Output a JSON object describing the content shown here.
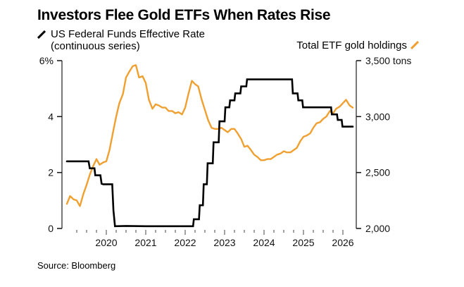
{
  "title": "Investors Flee Gold ETFs When Rates Rise",
  "source": "Source: Bloomberg",
  "legend": {
    "rate_label": "US Federal Funds Effective Rate (continuous series)",
    "gold_label": "Total ETF gold holdings"
  },
  "colors": {
    "rate": "#000000",
    "gold": "#f0a030",
    "axis": "#777777"
  },
  "chart_data": {
    "type": "line",
    "title": "Investors Flee Gold ETFs When Rates Rise",
    "xlabel": "",
    "x_ticks": [
      "2020",
      "2021",
      "2022",
      "2023",
      "2024",
      "2025",
      "2026"
    ],
    "xlim": [
      2019.0,
      2026.5
    ],
    "y_left": {
      "label": "US Federal Funds Effective Rate",
      "unit": "%",
      "ticks": [
        "6%",
        "4",
        "2",
        "0"
      ],
      "ylim": [
        0,
        6
      ]
    },
    "y_right": {
      "label": "Total ETF gold holdings",
      "unit": "tons",
      "ticks": [
        "3,500 tons",
        "3,000",
        "2,500",
        "2,000"
      ],
      "ylim": [
        2000,
        3500
      ]
    },
    "grid": false,
    "legend": [
      "top-left",
      "top-right"
    ],
    "series": [
      {
        "name": "US Federal Funds Effective Rate (continuous series)",
        "axis": "left",
        "style": "step",
        "x": [
          2019.0,
          2019.55,
          2019.58,
          2019.7,
          2019.72,
          2019.85,
          2019.88,
          2019.92,
          2020.15,
          2020.18,
          2020.22,
          2020.5,
          2021.0,
          2021.5,
          2022.0,
          2022.2,
          2022.22,
          2022.35,
          2022.37,
          2022.45,
          2022.47,
          2022.55,
          2022.57,
          2022.7,
          2022.72,
          2022.85,
          2022.87,
          2023.0,
          2023.02,
          2023.12,
          2023.14,
          2023.25,
          2023.27,
          2023.4,
          2023.42,
          2023.55,
          2023.57,
          2024.0,
          2024.71,
          2024.73,
          2024.85,
          2024.87,
          2024.97,
          2024.99,
          2025.7,
          2025.72,
          2025.85,
          2025.87,
          2025.97,
          2025.99,
          2026.25
        ],
        "y": [
          2.4,
          2.4,
          2.15,
          2.15,
          1.9,
          1.9,
          1.6,
          1.58,
          1.58,
          0.65,
          0.08,
          0.09,
          0.08,
          0.08,
          0.08,
          0.08,
          0.33,
          0.33,
          0.83,
          0.83,
          1.58,
          1.58,
          2.33,
          2.33,
          3.08,
          3.08,
          3.83,
          3.83,
          4.33,
          4.33,
          4.58,
          4.58,
          4.83,
          4.83,
          5.08,
          5.08,
          5.33,
          5.33,
          5.33,
          4.83,
          4.83,
          4.58,
          4.58,
          4.33,
          4.33,
          4.08,
          4.08,
          3.88,
          3.88,
          3.64,
          3.64
        ]
      },
      {
        "name": "Total ETF gold holdings",
        "axis": "right",
        "unit": "tons",
        "x": [
          2019.0,
          2019.08,
          2019.17,
          2019.25,
          2019.33,
          2019.42,
          2019.5,
          2019.58,
          2019.67,
          2019.75,
          2019.83,
          2019.92,
          2020.0,
          2020.08,
          2020.17,
          2020.25,
          2020.33,
          2020.42,
          2020.5,
          2020.58,
          2020.67,
          2020.75,
          2020.83,
          2020.92,
          2021.0,
          2021.08,
          2021.17,
          2021.25,
          2021.33,
          2021.42,
          2021.5,
          2021.58,
          2021.67,
          2021.75,
          2021.83,
          2021.92,
          2022.0,
          2022.08,
          2022.17,
          2022.25,
          2022.33,
          2022.42,
          2022.5,
          2022.58,
          2022.67,
          2022.75,
          2022.83,
          2022.92,
          2023.0,
          2023.08,
          2023.17,
          2023.25,
          2023.33,
          2023.42,
          2023.5,
          2023.58,
          2023.67,
          2023.75,
          2023.83,
          2023.92,
          2024.0,
          2024.08,
          2024.17,
          2024.25,
          2024.33,
          2024.42,
          2024.5,
          2024.58,
          2024.67,
          2024.75,
          2024.83,
          2024.92,
          2025.0,
          2025.08,
          2025.17,
          2025.25,
          2025.33,
          2025.42,
          2025.5,
          2025.58,
          2025.67,
          2025.75,
          2025.83,
          2025.92,
          2026.0,
          2026.08,
          2026.17,
          2026.25
        ],
        "y": [
          2220,
          2290,
          2260,
          2250,
          2200,
          2310,
          2390,
          2480,
          2560,
          2620,
          2570,
          2590,
          2600,
          2700,
          2860,
          3000,
          3120,
          3200,
          3350,
          3400,
          3450,
          3460,
          3350,
          3360,
          3300,
          3150,
          3070,
          3110,
          3100,
          3080,
          3080,
          3050,
          3050,
          3030,
          3040,
          3020,
          3080,
          3200,
          3320,
          3290,
          3270,
          3150,
          3060,
          2970,
          2900,
          2890,
          2890,
          2900,
          2880,
          2860,
          2890,
          2890,
          2850,
          2800,
          2730,
          2740,
          2700,
          2660,
          2640,
          2610,
          2610,
          2620,
          2620,
          2640,
          2660,
          2670,
          2690,
          2680,
          2680,
          2700,
          2720,
          2780,
          2820,
          2830,
          2850,
          2900,
          2940,
          2950,
          2980,
          3000,
          3050,
          3030,
          3070,
          3090,
          3120,
          3150,
          3100,
          3080
        ]
      }
    ]
  }
}
